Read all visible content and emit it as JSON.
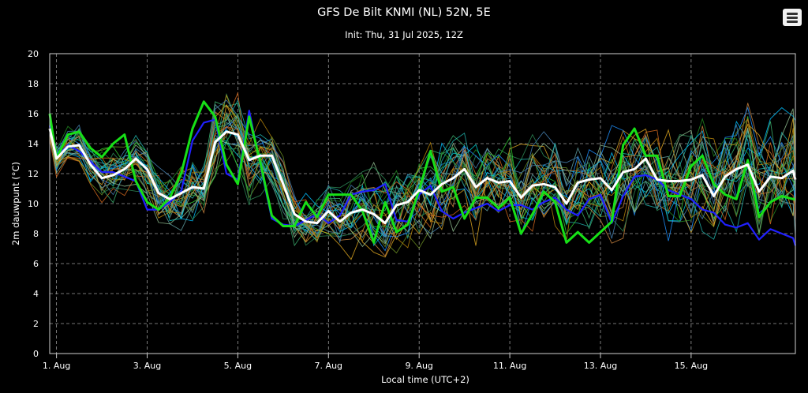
{
  "header": {
    "title": "GFS De Bilt KNMI (NL) 52N, 5E",
    "subtitle": "Init: Thu, 31 Jul 2025, 12Z"
  },
  "menu": {
    "icon": "hamburger-menu-icon"
  },
  "chart_data": {
    "type": "line",
    "title": "GFS De Bilt KNMI (NL) 52N, 5E",
    "subtitle": "Init: Thu, 31 Jul 2025, 12Z",
    "xlabel": "Local time (UTC+2)",
    "ylabel": "2m dauwpunt (°C)",
    "ylim": [
      0,
      20
    ],
    "yticks": [
      0,
      2,
      4,
      6,
      8,
      10,
      12,
      14,
      16,
      18,
      20
    ],
    "x_range_days_aug": [
      0.85,
      17.3
    ],
    "xticks": [
      {
        "day": 1,
        "label": "1. Aug"
      },
      {
        "day": 3,
        "label": "3. Aug"
      },
      {
        "day": 5,
        "label": "5. Aug"
      },
      {
        "day": 7,
        "label": "7. Aug"
      },
      {
        "day": 9,
        "label": "9. Aug"
      },
      {
        "day": 11,
        "label": "11. Aug"
      },
      {
        "day": 13,
        "label": "13. Aug"
      },
      {
        "day": 15,
        "label": "15. Aug"
      }
    ],
    "grid": true,
    "time_step_hours": 6,
    "start_day": 0.75,
    "highlight_series": [
      {
        "role": "ensemble-mean",
        "color": "#ffffff",
        "values": [
          15.0,
          13.0,
          13.8,
          13.9,
          12.6,
          11.7,
          11.9,
          12.3,
          13.0,
          12.3,
          10.7,
          10.3,
          10.7,
          11.1,
          11.0,
          14.1,
          14.8,
          14.6,
          12.9,
          13.2,
          13.2,
          11.3,
          9.3,
          8.8,
          8.7,
          9.5,
          8.8,
          9.4,
          9.6,
          9.3,
          8.7,
          9.9,
          10.1,
          10.9,
          10.6,
          11.3,
          11.7,
          12.3,
          11.1,
          11.7,
          11.4,
          11.5,
          10.4,
          11.2,
          11.3,
          11.1,
          10.0,
          11.4,
          11.6,
          11.7,
          10.9,
          12.1,
          12.3,
          13.0,
          11.6,
          11.5,
          11.5,
          11.6,
          11.9,
          10.5,
          11.8,
          12.3,
          12.6,
          10.8,
          11.8,
          11.7,
          12.2,
          11.6
        ]
      },
      {
        "role": "control-run",
        "color": "#17e017",
        "values": [
          16.0,
          13.0,
          14.6,
          14.8,
          13.7,
          13.1,
          14.0,
          14.6,
          11.5,
          10.1,
          9.6,
          10.4,
          12.0,
          15.0,
          16.8,
          15.8,
          12.6,
          11.3,
          15.8,
          12.7,
          9.2,
          8.5,
          8.5,
          10.1,
          9.1,
          10.6,
          10.6,
          10.6,
          9.5,
          7.4,
          10.1,
          8.1,
          8.6,
          10.9,
          13.5,
          10.8,
          11.1,
          9.0,
          10.4,
          10.4,
          9.7,
          10.4,
          8.0,
          9.3,
          10.8,
          10.1,
          7.4,
          8.1,
          7.4,
          8.1,
          8.8,
          13.9,
          15.0,
          13.2,
          13.2,
          10.5,
          10.5,
          12.5,
          13.2,
          11.3,
          10.6,
          10.3,
          12.9,
          9.1,
          10.1,
          10.5,
          10.3,
          10.3
        ]
      },
      {
        "role": "operational-run",
        "color": "#2020ff",
        "values": [
          15.2,
          13.1,
          13.9,
          13.5,
          12.8,
          12.1,
          12.1,
          11.8,
          11.5,
          9.6,
          9.6,
          10.1,
          10.8,
          14.2,
          15.4,
          15.6,
          12.0,
          11.6,
          16.2,
          12.5,
          9.0,
          8.6,
          8.5,
          8.9,
          9.3,
          8.7,
          9.2,
          10.6,
          10.8,
          10.9,
          11.3,
          8.9,
          8.8,
          10.6,
          11.2,
          9.5,
          9.0,
          9.4,
          9.7,
          10.0,
          9.5,
          9.9,
          9.9,
          9.6,
          10.1,
          10.4,
          9.6,
          9.2,
          10.3,
          10.6,
          8.7,
          10.5,
          11.8,
          11.9,
          11.6,
          10.9,
          10.6,
          10.3,
          9.6,
          9.4,
          8.6,
          8.4,
          8.7,
          7.6,
          8.3,
          8.0,
          7.7,
          7.2
        ]
      }
    ],
    "ensemble_members": {
      "count": 30,
      "palette": [
        "#1e90ff",
        "#00bfff",
        "#20b2aa",
        "#3cb371",
        "#228b22",
        "#6b8e23",
        "#daa520",
        "#cd853f",
        "#b8860b",
        "#2e8b57",
        "#4682b4",
        "#5f9ea0",
        "#8fbc8f",
        "#d2691e",
        "#00ced1",
        "#32cd32"
      ],
      "spread_by_day": [
        [
          1,
          1.0
        ],
        [
          2,
          1.5
        ],
        [
          3,
          1.6
        ],
        [
          4,
          1.9
        ],
        [
          5,
          2.3
        ],
        [
          6,
          1.5
        ],
        [
          7,
          1.6
        ],
        [
          8,
          2.4
        ],
        [
          9,
          2.6
        ],
        [
          10,
          2.5
        ],
        [
          11,
          2.5
        ],
        [
          12,
          2.7
        ],
        [
          13,
          2.8
        ],
        [
          14,
          2.9
        ],
        [
          15,
          3.1
        ],
        [
          16,
          3.2
        ],
        [
          17.3,
          3.3
        ]
      ]
    }
  },
  "axis": {
    "xlabel": "Local time (UTC+2)",
    "ylabel": "2m dauwpunt (°C)"
  }
}
